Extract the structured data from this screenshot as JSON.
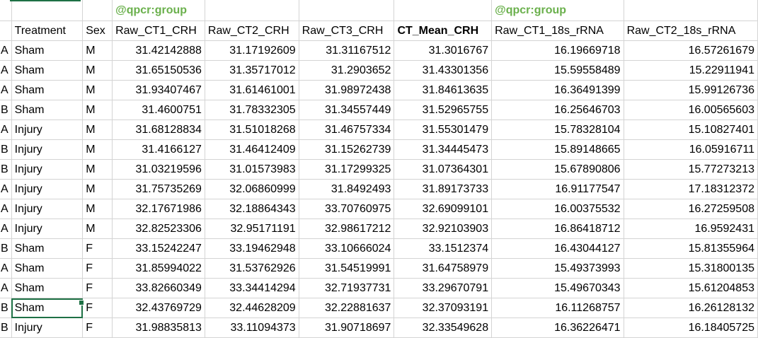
{
  "tags": {
    "crh_group": "@qpcr:group",
    "rrna_group": "@qpcr:group"
  },
  "headers": [
    "",
    "Treatment",
    "Sex",
    "Raw_CT1_CRH",
    "Raw_CT2_CRH",
    "Raw_CT3_CRH",
    "CT_Mean_CRH",
    "Raw_CT1_18s_rRNA",
    "Raw_CT2_18s_rRNA"
  ],
  "rows": [
    [
      "A",
      "Sham",
      "M",
      "31.42142888",
      "31.17192609",
      "31.31167512",
      "31.3016767",
      "16.19669718",
      "16.57261679"
    ],
    [
      "A",
      "Sham",
      "M",
      "31.65150536",
      "31.35717012",
      "31.2903652",
      "31.43301356",
      "15.59558489",
      "15.22911941"
    ],
    [
      "A",
      "Sham",
      "M",
      "31.93407467",
      "31.61461001",
      "31.98972438",
      "31.84613635",
      "16.36491399",
      "15.99126736"
    ],
    [
      "B",
      "Sham",
      "M",
      "31.4600751",
      "31.78332305",
      "31.34557449",
      "31.52965755",
      "16.25646703",
      "16.00565603"
    ],
    [
      "A",
      "Injury",
      "M",
      "31.68128834",
      "31.51018268",
      "31.46757334",
      "31.55301479",
      "15.78328104",
      "15.10827401"
    ],
    [
      "B",
      "Injury",
      "M",
      "31.4166127",
      "31.46412409",
      "31.15262739",
      "31.34445473",
      "15.89148665",
      "16.05916711"
    ],
    [
      "B",
      "Injury",
      "M",
      "31.03219596",
      "31.01573983",
      "31.17299325",
      "31.07364301",
      "15.67890806",
      "15.77273213"
    ],
    [
      "A",
      "Injury",
      "M",
      "31.75735269",
      "32.06860999",
      "31.8492493",
      "31.89173733",
      "16.91177547",
      "17.18312372"
    ],
    [
      "A",
      "Injury",
      "M",
      "32.17671986",
      "32.18864343",
      "33.70760975",
      "32.69099101",
      "16.00375532",
      "16.27259508"
    ],
    [
      "A",
      "Injury",
      "M",
      "32.82523306",
      "32.95171191",
      "32.98617212",
      "32.92103903",
      "16.86418712",
      "16.9592431"
    ],
    [
      "B",
      "Sham",
      "F",
      "33.15242247",
      "33.19462948",
      "33.10666024",
      "33.1512374",
      "16.43044127",
      "15.81355964"
    ],
    [
      "A",
      "Sham",
      "F",
      "31.85994022",
      "31.53762926",
      "31.54519991",
      "31.64758979",
      "15.49373993",
      "15.31800135"
    ],
    [
      "A",
      "Sham",
      "F",
      "33.82660349",
      "33.34414294",
      "32.71937731",
      "33.29670791",
      "15.49670343",
      "15.61204853"
    ],
    [
      "B",
      "Sham",
      "F",
      "32.43769729",
      "32.44628209",
      "32.22881637",
      "32.37093191",
      "16.11268757",
      "16.26128132"
    ],
    [
      "B",
      "Injury",
      "F",
      "31.98835813",
      "33.11094373",
      "31.90718697",
      "32.33549628",
      "16.36226471",
      "16.18405725"
    ]
  ],
  "selected_cell": {
    "row": 13,
    "col": 1
  },
  "colors": {
    "grid": "#d4d4d4",
    "tag_green": "#6ab04c",
    "selection": "#1e7145"
  }
}
